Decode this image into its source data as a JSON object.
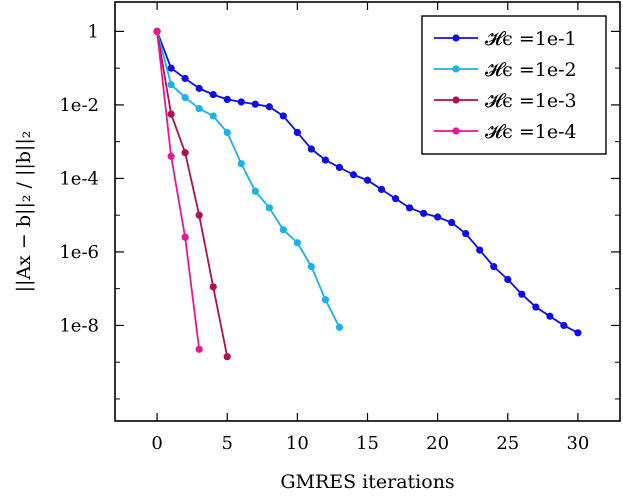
{
  "chart_data": {
    "type": "line",
    "title": "",
    "xlabel": "GMRES iterations",
    "ylabel": "||Ax − b||₂ / ||b||₂",
    "xlim": [
      -3,
      33
    ],
    "ylim_log10": [
      -10.6,
      0.8
    ],
    "yscale": "log",
    "grid": false,
    "legend_position": "top-right",
    "x_ticks": [
      0,
      5,
      10,
      15,
      20,
      25,
      30
    ],
    "x_tick_labels": [
      "0",
      "5",
      "10",
      "15",
      "20",
      "25",
      "30"
    ],
    "y_ticks_log10": [
      0,
      -2,
      -4,
      -6,
      -8
    ],
    "y_tick_labels": [
      "1",
      "1e-2",
      "1e-4",
      "1e-6",
      "1e-8"
    ],
    "series": [
      {
        "name": "𝓗ϵ =1e-1",
        "color": "#0d0df0",
        "x": [
          0,
          1,
          2,
          3,
          4,
          5,
          6,
          7,
          8,
          9,
          10,
          11,
          12,
          13,
          14,
          15,
          16,
          17,
          18,
          19,
          20,
          21,
          22,
          23,
          24,
          25,
          26,
          27,
          28,
          29,
          30
        ],
        "y_log10": [
          0,
          -1.0,
          -1.28,
          -1.55,
          -1.72,
          -1.85,
          -1.92,
          -1.98,
          -2.05,
          -2.3,
          -2.75,
          -3.2,
          -3.5,
          -3.7,
          -3.9,
          -4.05,
          -4.3,
          -4.55,
          -4.8,
          -4.95,
          -5.05,
          -5.2,
          -5.5,
          -5.95,
          -6.4,
          -6.75,
          -7.15,
          -7.5,
          -7.75,
          -8.0,
          -8.2
        ]
      },
      {
        "name": "𝓗ϵ =1e-2",
        "color": "#1ab2e8",
        "x": [
          0,
          1,
          2,
          3,
          4,
          5,
          6,
          7,
          8,
          9,
          10,
          11,
          12,
          13
        ],
        "y_log10": [
          0,
          -1.45,
          -1.8,
          -2.1,
          -2.3,
          -2.75,
          -3.6,
          -4.35,
          -4.8,
          -5.4,
          -5.75,
          -6.4,
          -7.3,
          -8.05
        ]
      },
      {
        "name": "𝓗ϵ =1e-3",
        "color": "#b0104e",
        "x": [
          0,
          1,
          2,
          3,
          4,
          5
        ],
        "y_log10": [
          0,
          -2.25,
          -3.3,
          -5.0,
          -6.95,
          -8.85
        ]
      },
      {
        "name": "𝓗ϵ =1e-4",
        "color": "#ea1496",
        "x": [
          0,
          1,
          2,
          3
        ],
        "y_log10": [
          0,
          -3.4,
          -5.6,
          -8.65
        ]
      }
    ]
  }
}
